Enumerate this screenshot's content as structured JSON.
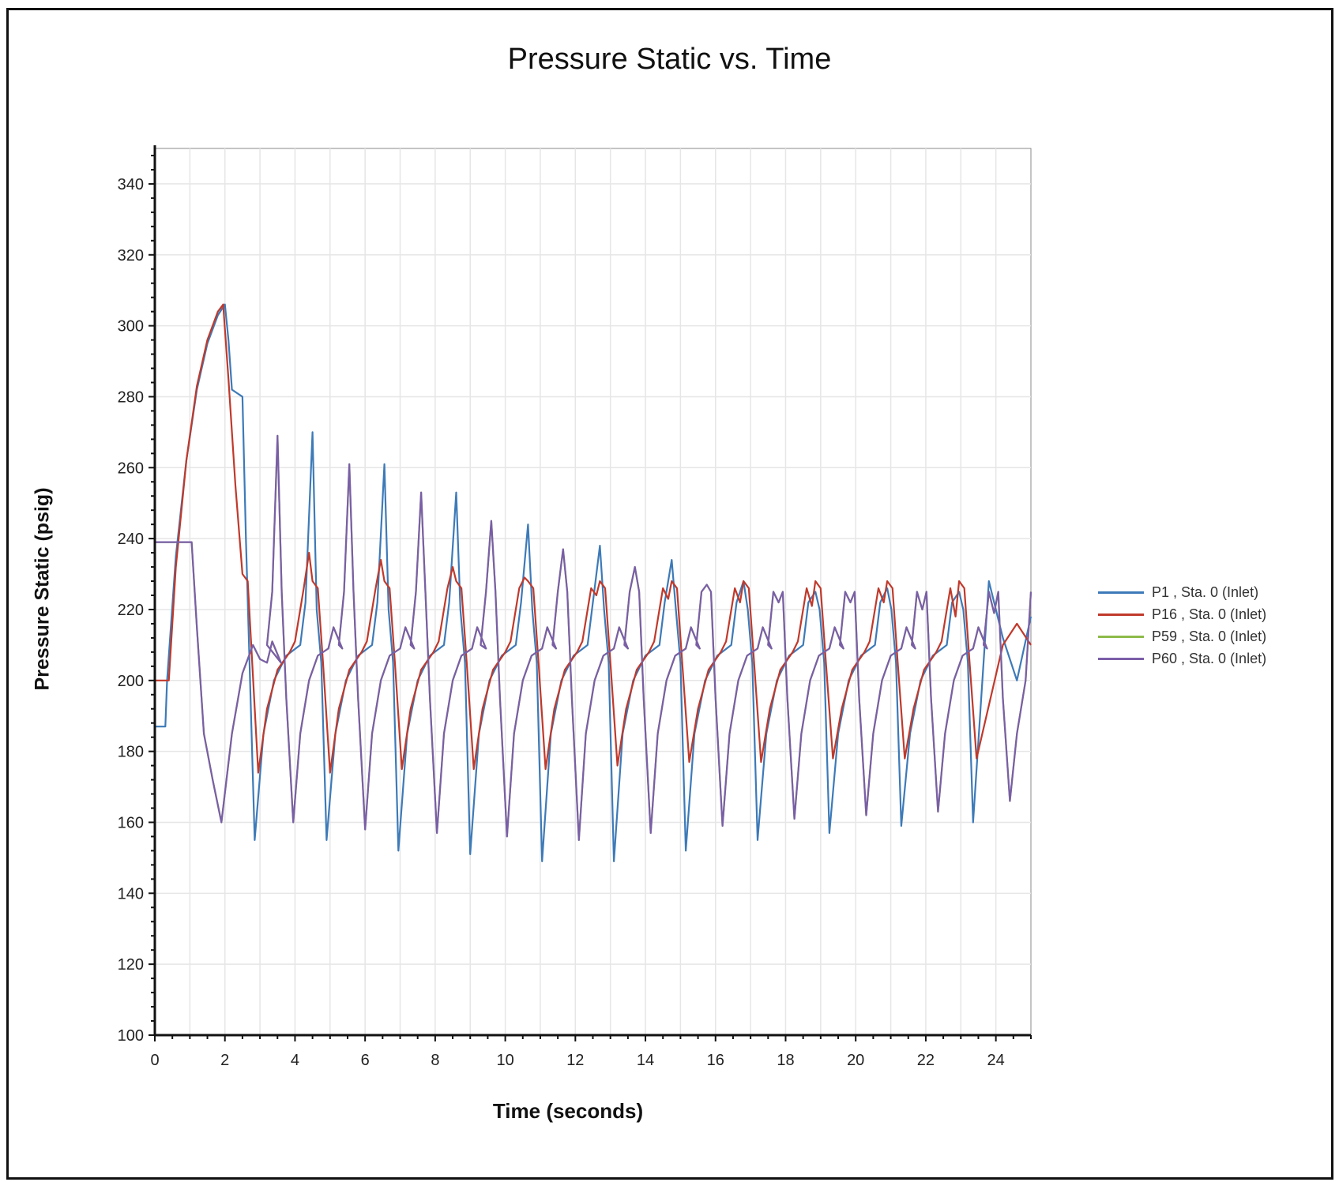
{
  "chart_data": {
    "type": "line",
    "title": "Pressure Static vs. Time",
    "xlabel": "Time (seconds)",
    "ylabel": "Pressure Static (psig)",
    "xlim": [
      0,
      25
    ],
    "ylim": [
      100,
      350
    ],
    "xticks": [
      0,
      2,
      4,
      6,
      8,
      10,
      12,
      14,
      16,
      18,
      20,
      22,
      24
    ],
    "yticks": [
      100,
      120,
      140,
      160,
      180,
      200,
      220,
      240,
      260,
      280,
      300,
      320,
      340
    ],
    "grid": true,
    "legend_position": "right",
    "series": [
      {
        "name": "P59 , Sta. 0 (Inlet)",
        "color": "#8dbb4a",
        "kind": "purple",
        "initial": [
          [
            0,
            239
          ],
          [
            1.05,
            239
          ],
          [
            1.2,
            215
          ],
          [
            1.4,
            185
          ],
          [
            1.65,
            172
          ],
          [
            1.9,
            160
          ],
          [
            2.2,
            185
          ],
          [
            2.5,
            202
          ],
          [
            2.8,
            210
          ],
          [
            3.0,
            206
          ],
          [
            3.2,
            205
          ]
        ],
        "cycles": [
          [
            3.5,
            269,
            3.95,
            160
          ],
          [
            5.55,
            261,
            6.0,
            158
          ],
          [
            7.6,
            253,
            8.05,
            157
          ],
          [
            9.6,
            245,
            10.05,
            156
          ],
          [
            11.65,
            237,
            12.1,
            155
          ],
          [
            13.7,
            232,
            14.15,
            157
          ],
          [
            15.75,
            227,
            16.2,
            159
          ],
          [
            17.8,
            222,
            18.25,
            161
          ],
          [
            19.85,
            222,
            20.3,
            162
          ],
          [
            21.9,
            220,
            22.35,
            163
          ],
          [
            23.95,
            219,
            24.4,
            166
          ]
        ],
        "final": [
          [
            25,
            225
          ]
        ]
      },
      {
        "name": "P1 , Sta. 0 (Inlet)",
        "color": "#3d7ab8",
        "kind": "blue",
        "initial": [
          [
            0,
            187
          ],
          [
            0.3,
            187
          ],
          [
            0.35,
            200
          ],
          [
            0.6,
            235
          ],
          [
            0.9,
            262
          ],
          [
            1.2,
            282
          ],
          [
            1.5,
            295
          ],
          [
            1.8,
            303
          ],
          [
            2.0,
            306
          ],
          [
            2.1,
            296
          ],
          [
            2.2,
            282
          ],
          [
            2.5,
            280
          ],
          [
            2.6,
            240
          ],
          [
            2.85,
            155
          ]
        ],
        "cycles": [
          [
            4.5,
            270,
            4.9,
            155
          ],
          [
            6.55,
            261,
            6.95,
            152
          ],
          [
            8.6,
            253,
            9.0,
            151
          ],
          [
            10.65,
            244,
            11.05,
            149
          ],
          [
            12.7,
            238,
            13.1,
            149
          ],
          [
            14.75,
            234,
            15.15,
            152
          ],
          [
            16.8,
            228,
            17.2,
            155
          ],
          [
            18.85,
            225,
            19.25,
            157
          ],
          [
            20.9,
            226,
            21.3,
            159
          ],
          [
            22.95,
            225,
            23.35,
            160
          ]
        ],
        "final": [
          [
            23.8,
            228
          ],
          [
            24.2,
            212
          ],
          [
            24.6,
            200
          ],
          [
            25,
            218
          ]
        ]
      },
      {
        "name": "P16 , Sta. 0 (Inlet)",
        "color": "#c0392b",
        "kind": "red",
        "initial": [
          [
            0,
            200
          ],
          [
            0.4,
            200
          ],
          [
            0.6,
            232
          ],
          [
            0.9,
            262
          ],
          [
            1.2,
            283
          ],
          [
            1.5,
            296
          ],
          [
            1.8,
            304
          ],
          [
            1.95,
            306
          ],
          [
            2.1,
            285
          ],
          [
            2.3,
            255
          ],
          [
            2.5,
            230
          ],
          [
            2.65,
            228
          ],
          [
            2.95,
            174
          ]
        ],
        "cycles": [
          [
            4.4,
            236,
            5.0,
            174
          ],
          [
            6.45,
            234,
            7.05,
            175
          ],
          [
            8.5,
            232,
            9.1,
            175
          ],
          [
            10.55,
            229,
            11.15,
            175
          ],
          [
            12.6,
            224,
            13.2,
            176
          ],
          [
            14.65,
            223,
            15.25,
            177
          ],
          [
            16.7,
            222,
            17.3,
            177
          ],
          [
            18.75,
            221,
            19.35,
            178
          ],
          [
            20.8,
            222,
            21.4,
            178
          ],
          [
            22.85,
            218,
            23.45,
            178
          ]
        ],
        "final": [
          [
            24.2,
            210
          ],
          [
            24.6,
            216
          ],
          [
            25,
            210
          ]
        ]
      },
      {
        "name": "P60 , Sta. 0 (Inlet)",
        "color": "#7a5ea8",
        "kind": "purple",
        "initial": [
          [
            0,
            239
          ],
          [
            1.05,
            239
          ],
          [
            1.2,
            215
          ],
          [
            1.4,
            185
          ],
          [
            1.65,
            172
          ],
          [
            1.9,
            160
          ],
          [
            2.2,
            185
          ],
          [
            2.5,
            202
          ],
          [
            2.8,
            210
          ],
          [
            3.0,
            206
          ],
          [
            3.2,
            205
          ]
        ],
        "cycles": [
          [
            3.5,
            269,
            3.95,
            160
          ],
          [
            5.55,
            261,
            6.0,
            158
          ],
          [
            7.6,
            253,
            8.05,
            157
          ],
          [
            9.6,
            245,
            10.05,
            156
          ],
          [
            11.65,
            237,
            12.1,
            155
          ],
          [
            13.7,
            232,
            14.15,
            157
          ],
          [
            15.75,
            227,
            16.2,
            159
          ],
          [
            17.8,
            222,
            18.25,
            161
          ],
          [
            19.85,
            222,
            20.3,
            162
          ],
          [
            21.9,
            220,
            22.35,
            163
          ],
          [
            23.95,
            219,
            24.4,
            166
          ]
        ],
        "final": [
          [
            25,
            225
          ]
        ]
      }
    ],
    "legend": [
      {
        "label": "P1 , Sta. 0 (Inlet)",
        "color": "#3d7ab8"
      },
      {
        "label": "P16 , Sta. 0 (Inlet)",
        "color": "#c0392b"
      },
      {
        "label": "P59 , Sta. 0 (Inlet)",
        "color": "#8dbb4a"
      },
      {
        "label": "P60 , Sta. 0 (Inlet)",
        "color": "#7a5ea8"
      }
    ]
  }
}
